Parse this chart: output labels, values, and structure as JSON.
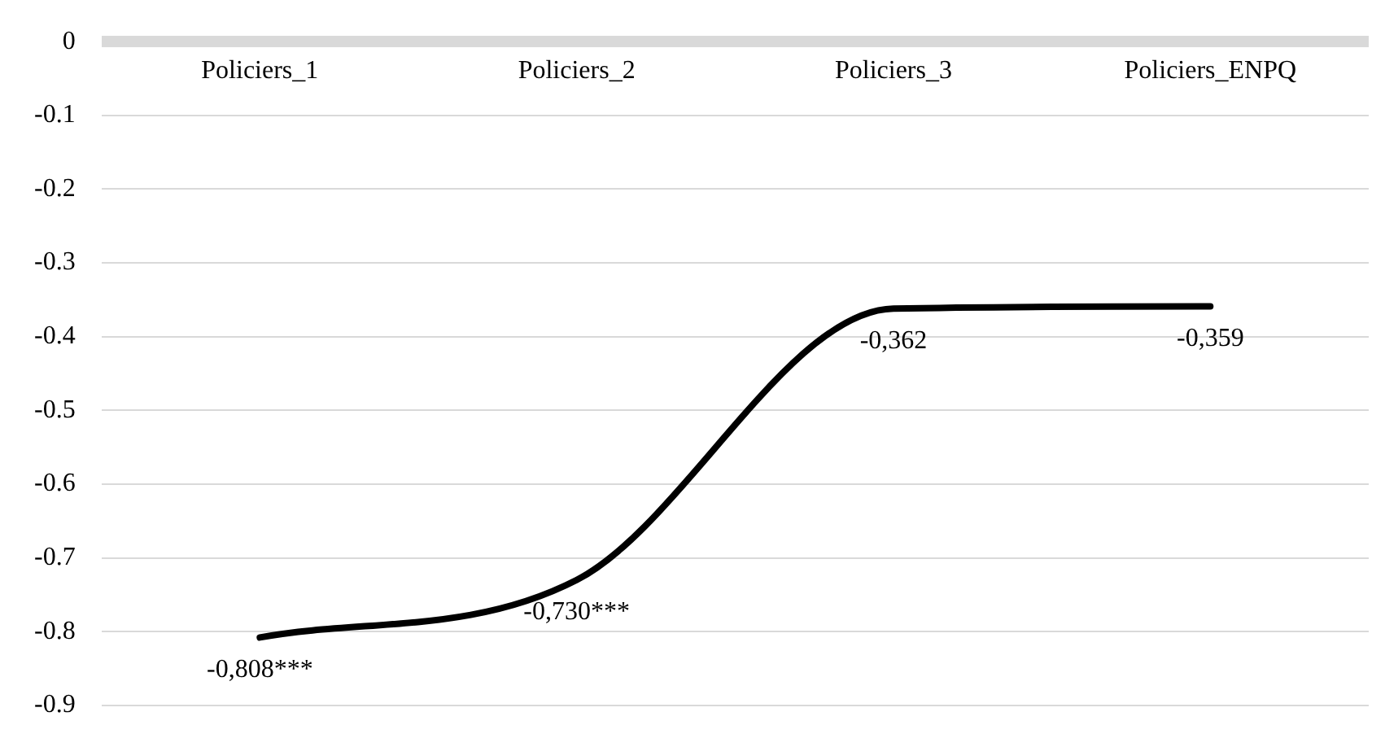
{
  "chart_data": {
    "type": "line",
    "categories": [
      "Policiers_1",
      "Policiers_2",
      "Policiers_3",
      "Policiers_ENPQ"
    ],
    "series": [
      {
        "color": "#000000",
        "values": [
          -0.808,
          -0.73,
          -0.362,
          -0.359
        ],
        "value_labels": [
          "-0,808***",
          "-0,730***",
          "-0,362",
          "-0,359"
        ]
      }
    ],
    "ylim": [
      -0.9,
      0
    ],
    "yticks": [
      0,
      -0.1,
      -0.2,
      -0.3,
      -0.4,
      -0.5,
      -0.6,
      -0.7,
      -0.8,
      -0.9
    ],
    "grid": "y",
    "legend": false,
    "marker": "none",
    "line_style": "solid"
  }
}
